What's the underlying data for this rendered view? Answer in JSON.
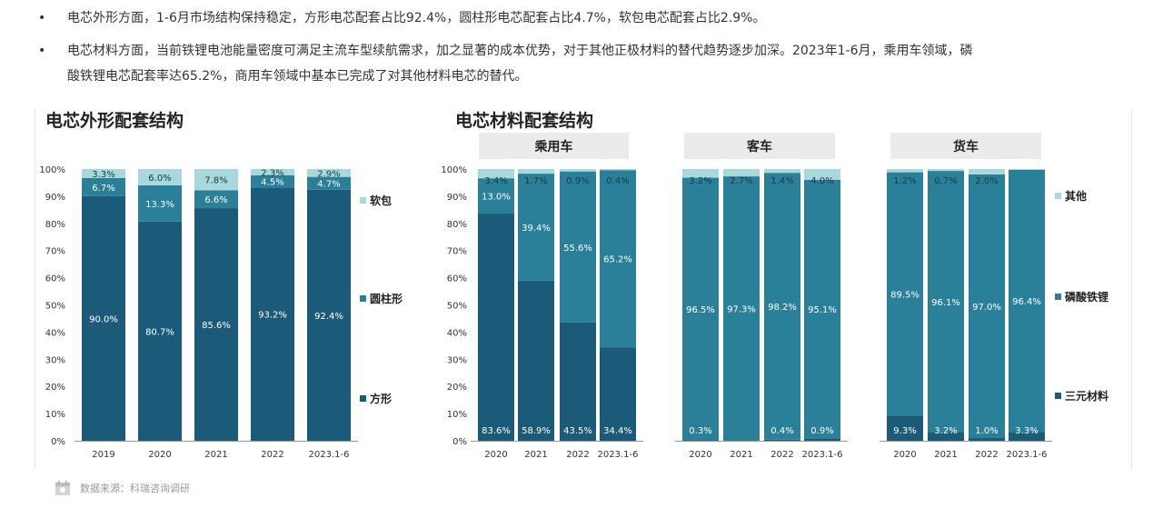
{
  "bullets": [
    {
      "text": "电芯外形方面，1-6月市场结构保持稳定，方形电芯配套占比92.4%，圆柱形电芯配套占比4.7%，软包电芯配套占比2.9%。"
    },
    {
      "line1": "电芯材料方面，当前铁锂电池能量密度可满足主流车型续航需求，加之显著的成本优势，对于其他正极材料的替代趋势逐步加深。2023年1-6月，乘用车领域，磷",
      "line2": "酸铁锂电芯配套率达65.2%，商用车领域中基本已完成了对其他材料电芯的替代。"
    }
  ],
  "bullet_symbol": "•",
  "colors": {
    "dark": "#1b5a78",
    "mid": "#2a7f99",
    "light": "#a6d8dc",
    "panel": "#ebebeb",
    "axis": "#999999"
  },
  "chart_data": [
    {
      "type": "bar",
      "stacked": true,
      "title": "电芯外形配套结构",
      "categories": [
        "2019",
        "2020",
        "2021",
        "2022",
        "2023.1-6"
      ],
      "ylim": [
        0,
        100
      ],
      "yticks": [
        "0%",
        "10%",
        "20%",
        "30%",
        "40%",
        "50%",
        "60%",
        "70%",
        "80%",
        "90%",
        "100%"
      ],
      "series": [
        {
          "name": "方形",
          "values": [
            90.0,
            80.7,
            85.6,
            93.2,
            92.4
          ],
          "labels": [
            "90.0%",
            "80.7%",
            "85.6%",
            "93.2%",
            "92.4%"
          ]
        },
        {
          "name": "圆柱形",
          "values": [
            6.7,
            13.3,
            6.6,
            4.5,
            4.7
          ],
          "labels": [
            "6.7%",
            "13.3%",
            "6.6%",
            "4.5%",
            "4.7%"
          ]
        },
        {
          "name": "软包",
          "values": [
            3.3,
            6.0,
            7.8,
            2.3,
            2.9
          ],
          "labels": [
            "3.3%",
            "6.0%",
            "7.8%",
            "2.3%",
            "2.9%"
          ]
        }
      ],
      "legend": [
        "软包",
        "圆柱形",
        "方形"
      ]
    },
    {
      "type": "bar",
      "stacked": true,
      "title": "电芯材料配套结构",
      "ylim": [
        0,
        100
      ],
      "yticks": [
        "0%",
        "10%",
        "20%",
        "30%",
        "40%",
        "50%",
        "60%",
        "70%",
        "80%",
        "90%",
        "100%"
      ],
      "groups": [
        {
          "name": "乘用车",
          "categories": [
            "2020",
            "2021",
            "2022",
            "2023.1-6"
          ],
          "series": [
            {
              "name": "三元材料",
              "values": [
                83.6,
                58.9,
                43.5,
                34.4
              ],
              "labels": [
                "83.6%",
                "58.9%",
                "43.5%",
                "34.4%"
              ]
            },
            {
              "name": "磷酸铁锂",
              "values": [
                13.0,
                39.4,
                55.6,
                65.2
              ],
              "labels": [
                "13.0%",
                "39.4%",
                "55.6%",
                "65.2%"
              ]
            },
            {
              "name": "其他",
              "values": [
                3.4,
                1.7,
                0.9,
                0.4
              ],
              "labels": [
                "3.4%",
                "1.7%",
                "0.9%",
                "0.4%"
              ]
            }
          ]
        },
        {
          "name": "客车",
          "categories": [
            "2020",
            "2021",
            "2022",
            "2023.1-6"
          ],
          "series": [
            {
              "name": "三元材料",
              "values": [
                0.3,
                0.0,
                0.4,
                0.9
              ],
              "labels": [
                "0.3%",
                "",
                "0.4%",
                "0.9%"
              ]
            },
            {
              "name": "磷酸铁锂",
              "values": [
                96.5,
                97.3,
                98.2,
                95.1
              ],
              "labels": [
                "96.5%",
                "97.3%",
                "98.2%",
                "95.1%"
              ]
            },
            {
              "name": "其他",
              "values": [
                3.2,
                2.7,
                1.4,
                4.0
              ],
              "labels": [
                "3.2%",
                "2.7%",
                "1.4%",
                "4.0%"
              ]
            }
          ]
        },
        {
          "name": "货车",
          "categories": [
            "2020",
            "2021",
            "2022",
            "2023.1-6"
          ],
          "series": [
            {
              "name": "三元材料",
              "values": [
                9.3,
                3.2,
                1.0,
                3.3
              ],
              "labels": [
                "9.3%",
                "3.2%",
                "1.0%",
                "3.3%"
              ]
            },
            {
              "name": "磷酸铁锂",
              "values": [
                89.5,
                96.1,
                97.0,
                96.4
              ],
              "labels": [
                "89.5%",
                "96.1%",
                "97.0%",
                "96.4%"
              ]
            },
            {
              "name": "其他",
              "values": [
                1.2,
                0.7,
                2.0,
                0.3
              ],
              "labels": [
                "1.2%",
                "0.7%",
                "2.0%",
                ""
              ]
            }
          ]
        }
      ],
      "legend": [
        "其他",
        "磷酸铁锂",
        "三元材料"
      ]
    }
  ],
  "footer": {
    "source": "数据来源：科瑞咨询调研"
  }
}
